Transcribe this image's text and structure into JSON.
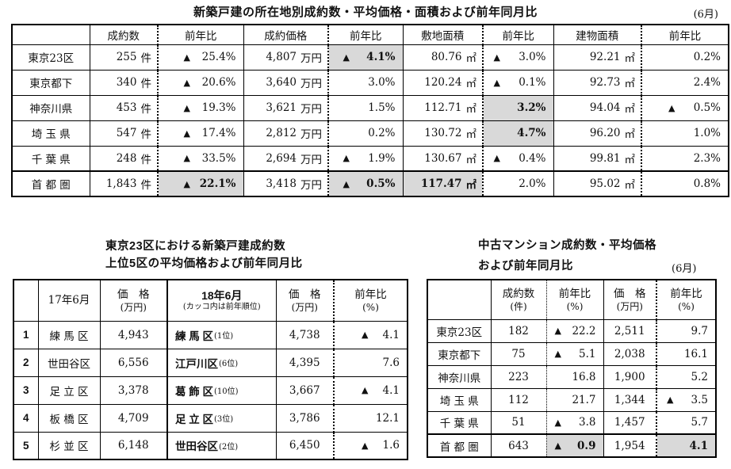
{
  "main_table": {
    "title": "新築戸建の所在地別成約数・平均価格・面積および前年同月比",
    "month": "(6月)",
    "headers": [
      "",
      "成約数",
      "前年比",
      "成約価格",
      "前年比",
      "敷地面積",
      "前年比",
      "建物面積",
      "前年比"
    ],
    "rows": [
      {
        "label": "東京23区",
        "cells": [
          {
            "v": "255",
            "u": "件"
          },
          {
            "tri": true,
            "v": "25.4%"
          },
          {
            "v": "4,807",
            "u": "万円"
          },
          {
            "tri": true,
            "v": "4.1%",
            "hl": true
          },
          {
            "v": "80.76",
            "u": "㎡"
          },
          {
            "tri": true,
            "v": "3.0%"
          },
          {
            "v": "92.21",
            "u": "㎡"
          },
          {
            "v": "0.2%"
          }
        ]
      },
      {
        "label": "東京都下",
        "cells": [
          {
            "v": "340",
            "u": "件"
          },
          {
            "tri": true,
            "v": "20.6%"
          },
          {
            "v": "3,640",
            "u": "万円"
          },
          {
            "v": "3.0%"
          },
          {
            "v": "120.24",
            "u": "㎡"
          },
          {
            "tri": true,
            "v": "0.1%"
          },
          {
            "v": "92.73",
            "u": "㎡"
          },
          {
            "v": "2.4%"
          }
        ]
      },
      {
        "label": "神奈川県",
        "cells": [
          {
            "v": "453",
            "u": "件"
          },
          {
            "tri": true,
            "v": "19.3%"
          },
          {
            "v": "3,621",
            "u": "万円"
          },
          {
            "v": "1.5%"
          },
          {
            "v": "112.71",
            "u": "㎡"
          },
          {
            "v": "3.2%",
            "hl": true
          },
          {
            "v": "94.04",
            "u": "㎡"
          },
          {
            "tri": true,
            "v": "0.5%"
          }
        ]
      },
      {
        "label": "埼 玉 県",
        "cells": [
          {
            "v": "547",
            "u": "件"
          },
          {
            "tri": true,
            "v": "17.4%"
          },
          {
            "v": "2,812",
            "u": "万円"
          },
          {
            "v": "0.2%"
          },
          {
            "v": "130.72",
            "u": "㎡"
          },
          {
            "v": "4.7%",
            "hl": true
          },
          {
            "v": "96.20",
            "u": "㎡"
          },
          {
            "v": "1.0%"
          }
        ]
      },
      {
        "label": "千 葉 県",
        "cells": [
          {
            "v": "248",
            "u": "件"
          },
          {
            "tri": true,
            "v": "33.5%"
          },
          {
            "v": "2,694",
            "u": "万円"
          },
          {
            "tri": true,
            "v": "1.9%"
          },
          {
            "v": "130.67",
            "u": "㎡"
          },
          {
            "tri": true,
            "v": "0.4%"
          },
          {
            "v": "99.81",
            "u": "㎡"
          },
          {
            "v": "2.3%"
          }
        ]
      },
      {
        "label": "首 都 圏",
        "thick_top": true,
        "cells": [
          {
            "v": "1,843",
            "u": "件"
          },
          {
            "tri": true,
            "v": "22.1%",
            "hl": true
          },
          {
            "v": "3,418",
            "u": "万円"
          },
          {
            "tri": true,
            "v": "0.5%",
            "hl": true
          },
          {
            "v": "117.47",
            "u": "㎡",
            "hl": true
          },
          {
            "v": "2.0%"
          },
          {
            "v": "95.02",
            "u": "㎡"
          },
          {
            "v": "0.8%"
          }
        ]
      }
    ]
  },
  "tokyo23_table": {
    "title_line1": "東京23区における新築戸建成約数",
    "title_line2": "上位5区の平均価格および前年同月比",
    "headers": [
      [
        ""
      ],
      [
        "17年6月"
      ],
      [
        "価　格",
        "(万円)"
      ],
      [
        "18年6月",
        "(カッコ内は前年順位)"
      ],
      [
        "価　格",
        "(万円)"
      ],
      [
        "前年比",
        "(%)"
      ]
    ],
    "rows": [
      {
        "no": "1",
        "ward17": "練 馬 区",
        "price17": "4,943",
        "ward18": "練 馬 区",
        "rank": "(1位)",
        "price18": "4,738",
        "yoy": {
          "tri": true,
          "v": "4.1"
        }
      },
      {
        "no": "2",
        "ward17": "世田谷区",
        "price17": "6,556",
        "ward18": "江戸川区",
        "rank": "(6位)",
        "price18": "4,395",
        "yoy": {
          "v": "7.6"
        }
      },
      {
        "no": "3",
        "ward17": "足 立 区",
        "price17": "3,378",
        "ward18": "葛 飾 区",
        "rank": "(10位)",
        "price18": "3,667",
        "yoy": {
          "tri": true,
          "v": "4.1"
        }
      },
      {
        "no": "4",
        "ward17": "板 橋 区",
        "price17": "4,709",
        "ward18": "足 立 区",
        "rank": "(3位)",
        "price18": "3,786",
        "yoy": {
          "v": "12.1"
        }
      },
      {
        "no": "5",
        "ward17": "杉 並 区",
        "price17": "6,148",
        "ward18": "世田谷区",
        "rank": "(2位)",
        "price18": "6,450",
        "yoy": {
          "tri": true,
          "v": "1.6"
        }
      }
    ]
  },
  "mansion_table": {
    "title_line1": "中古マンション成約数・平均価格",
    "title_line2": "および前年同月比",
    "month": "(6月)",
    "headers": [
      [
        ""
      ],
      [
        "成約数",
        "(件)"
      ],
      [
        "前年比",
        "(%)"
      ],
      [
        "価　格",
        "(万円)"
      ],
      [
        "前年比",
        "(%)"
      ]
    ],
    "rows": [
      {
        "label": "東京23区",
        "count": "182",
        "count_yoy": {
          "tri": true,
          "v": "22.2"
        },
        "price": "2,511",
        "price_yoy": {
          "v": "9.7"
        }
      },
      {
        "label": "東京都下",
        "count": "75",
        "count_yoy": {
          "tri": true,
          "v": "5.1"
        },
        "price": "2,038",
        "price_yoy": {
          "v": "16.1"
        }
      },
      {
        "label": "神奈川県",
        "count": "223",
        "count_yoy": {
          "v": "16.8"
        },
        "price": "1,900",
        "price_yoy": {
          "v": "5.2"
        }
      },
      {
        "label": "埼 玉 県",
        "count": "112",
        "count_yoy": {
          "v": "21.7"
        },
        "price": "1,344",
        "price_yoy": {
          "tri": true,
          "v": "3.5"
        }
      },
      {
        "label": "千 葉 県",
        "count": "51",
        "count_yoy": {
          "tri": true,
          "v": "3.8"
        },
        "price": "1,457",
        "price_yoy": {
          "v": "5.7"
        }
      },
      {
        "label": "首 都 圏",
        "thick_top": true,
        "count": "643",
        "count_yoy": {
          "tri": true,
          "v": "0.9",
          "hl": true
        },
        "price": "1,954",
        "price_yoy": {
          "v": "4.1",
          "hl": true
        }
      }
    ]
  }
}
